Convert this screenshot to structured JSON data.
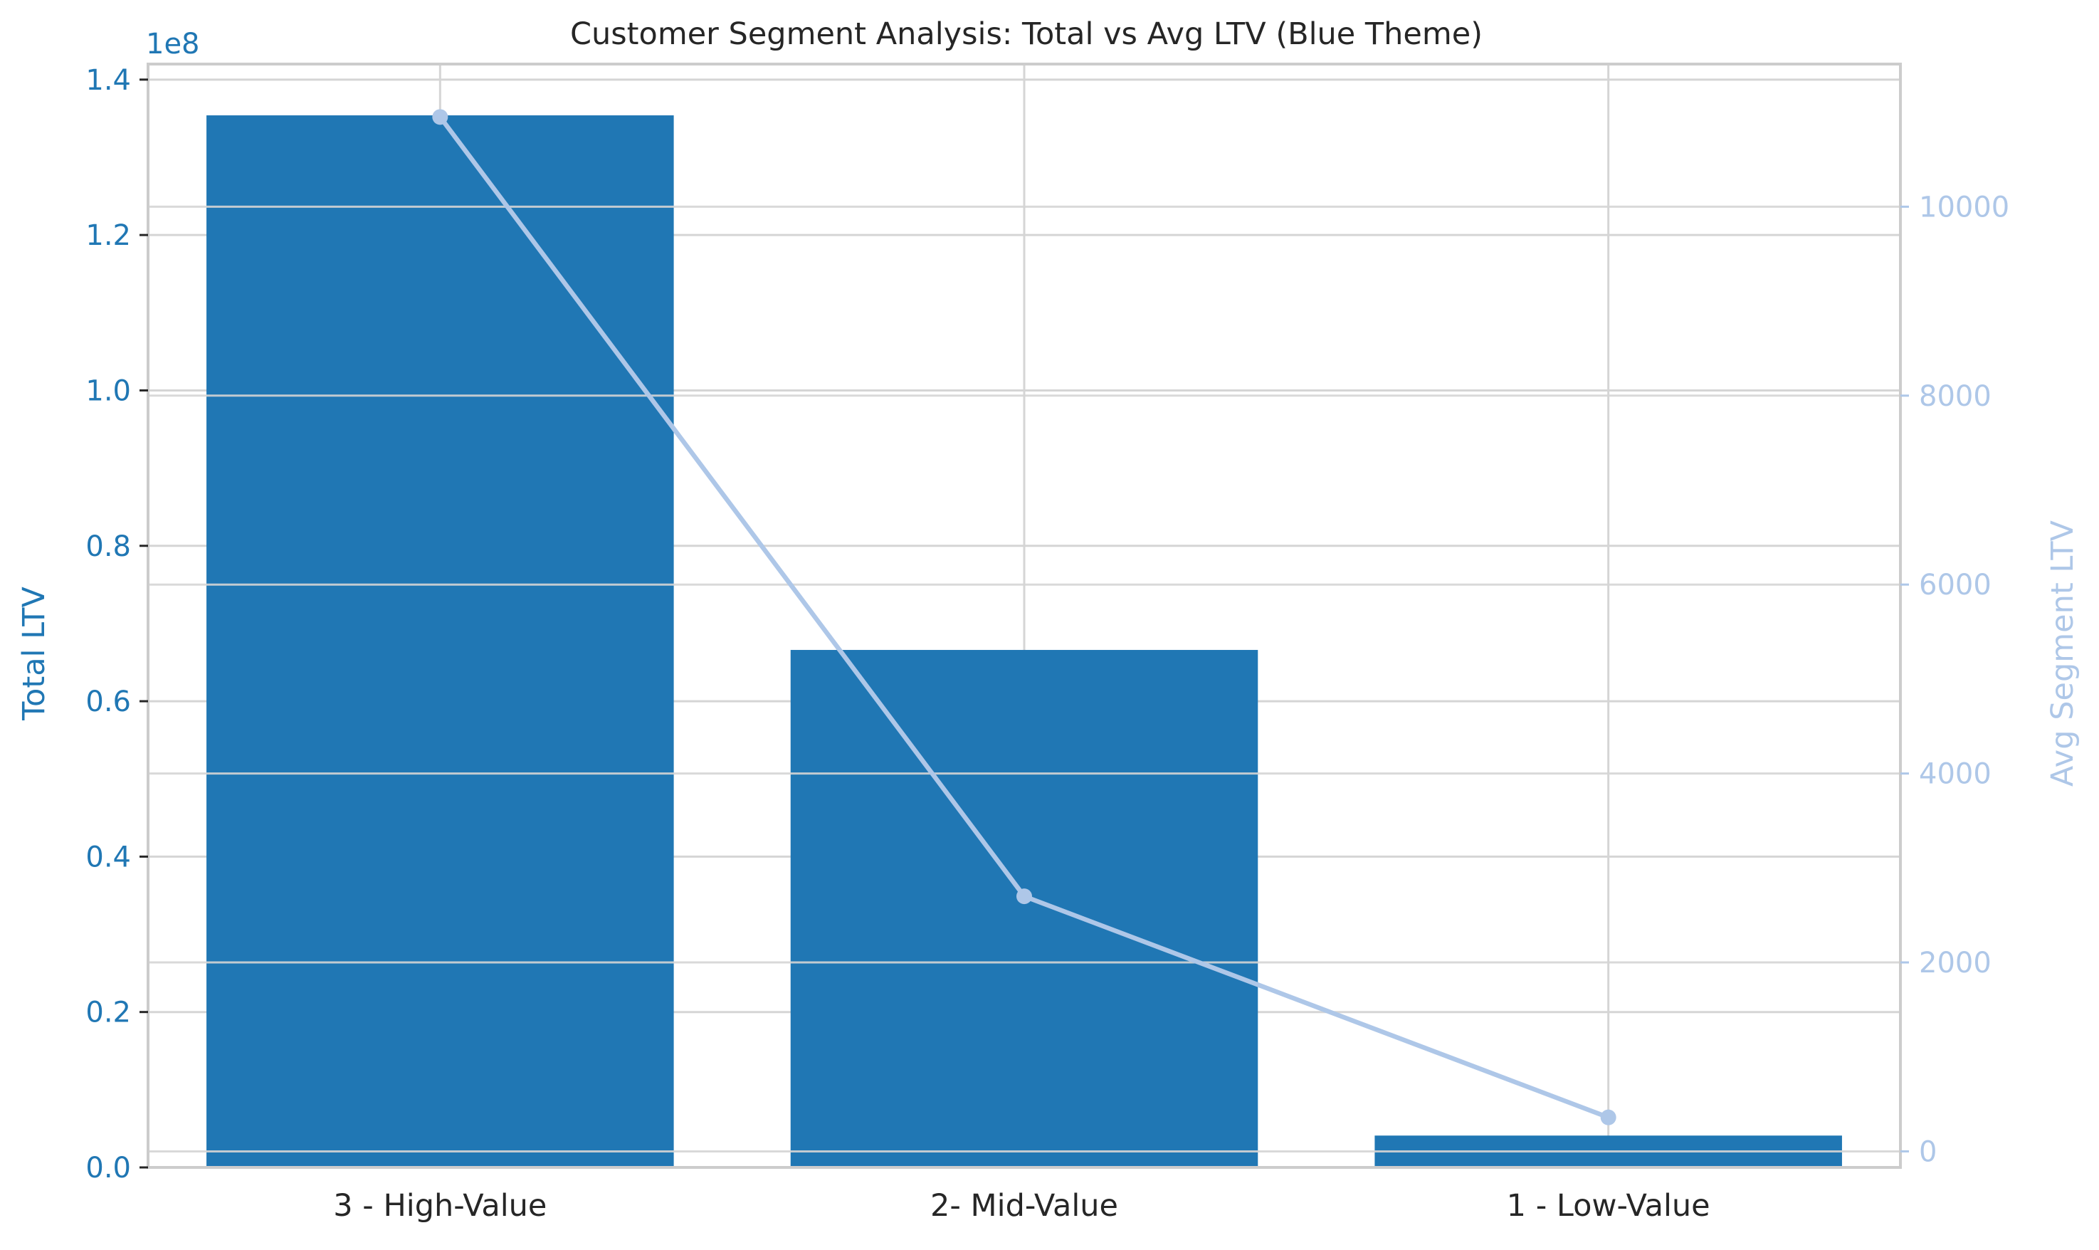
{
  "chart_data": {
    "type": "bar",
    "title": "Customer Segment Analysis: Total vs Avg LTV (Blue Theme)",
    "categories": [
      "3 - High-Value",
      "2- Mid-Value",
      "1 - Low-Value"
    ],
    "series": [
      {
        "name": "Total LTV",
        "type": "bar",
        "axis": "left",
        "values": [
          135400000,
          66600000,
          4100000
        ],
        "color": "#2077b4"
      },
      {
        "name": "Avg Segment LTV",
        "type": "line",
        "axis": "right",
        "values": [
          10950,
          2700,
          360
        ],
        "color": "#aec7e8"
      }
    ],
    "y_left": {
      "label": "Total LTV",
      "offset_text": "1e8",
      "lim": [
        0,
        1.42
      ],
      "ticks": [
        0.0,
        0.2,
        0.4,
        0.6,
        0.8,
        1.0,
        1.2,
        1.4
      ],
      "tick_labels": [
        "0.0",
        "0.2",
        "0.4",
        "0.6",
        "0.8",
        "1.0",
        "1.2",
        "1.4"
      ],
      "color": "#2077b4"
    },
    "y_right": {
      "label": "Avg Segment LTV",
      "lim": [
        -170,
        11510
      ],
      "ticks": [
        0,
        2000,
        4000,
        6000,
        8000,
        10000
      ],
      "tick_labels": [
        "0",
        "2000",
        "4000",
        "6000",
        "8000",
        "10000"
      ],
      "color": "#aec7e8"
    },
    "grid": true
  }
}
